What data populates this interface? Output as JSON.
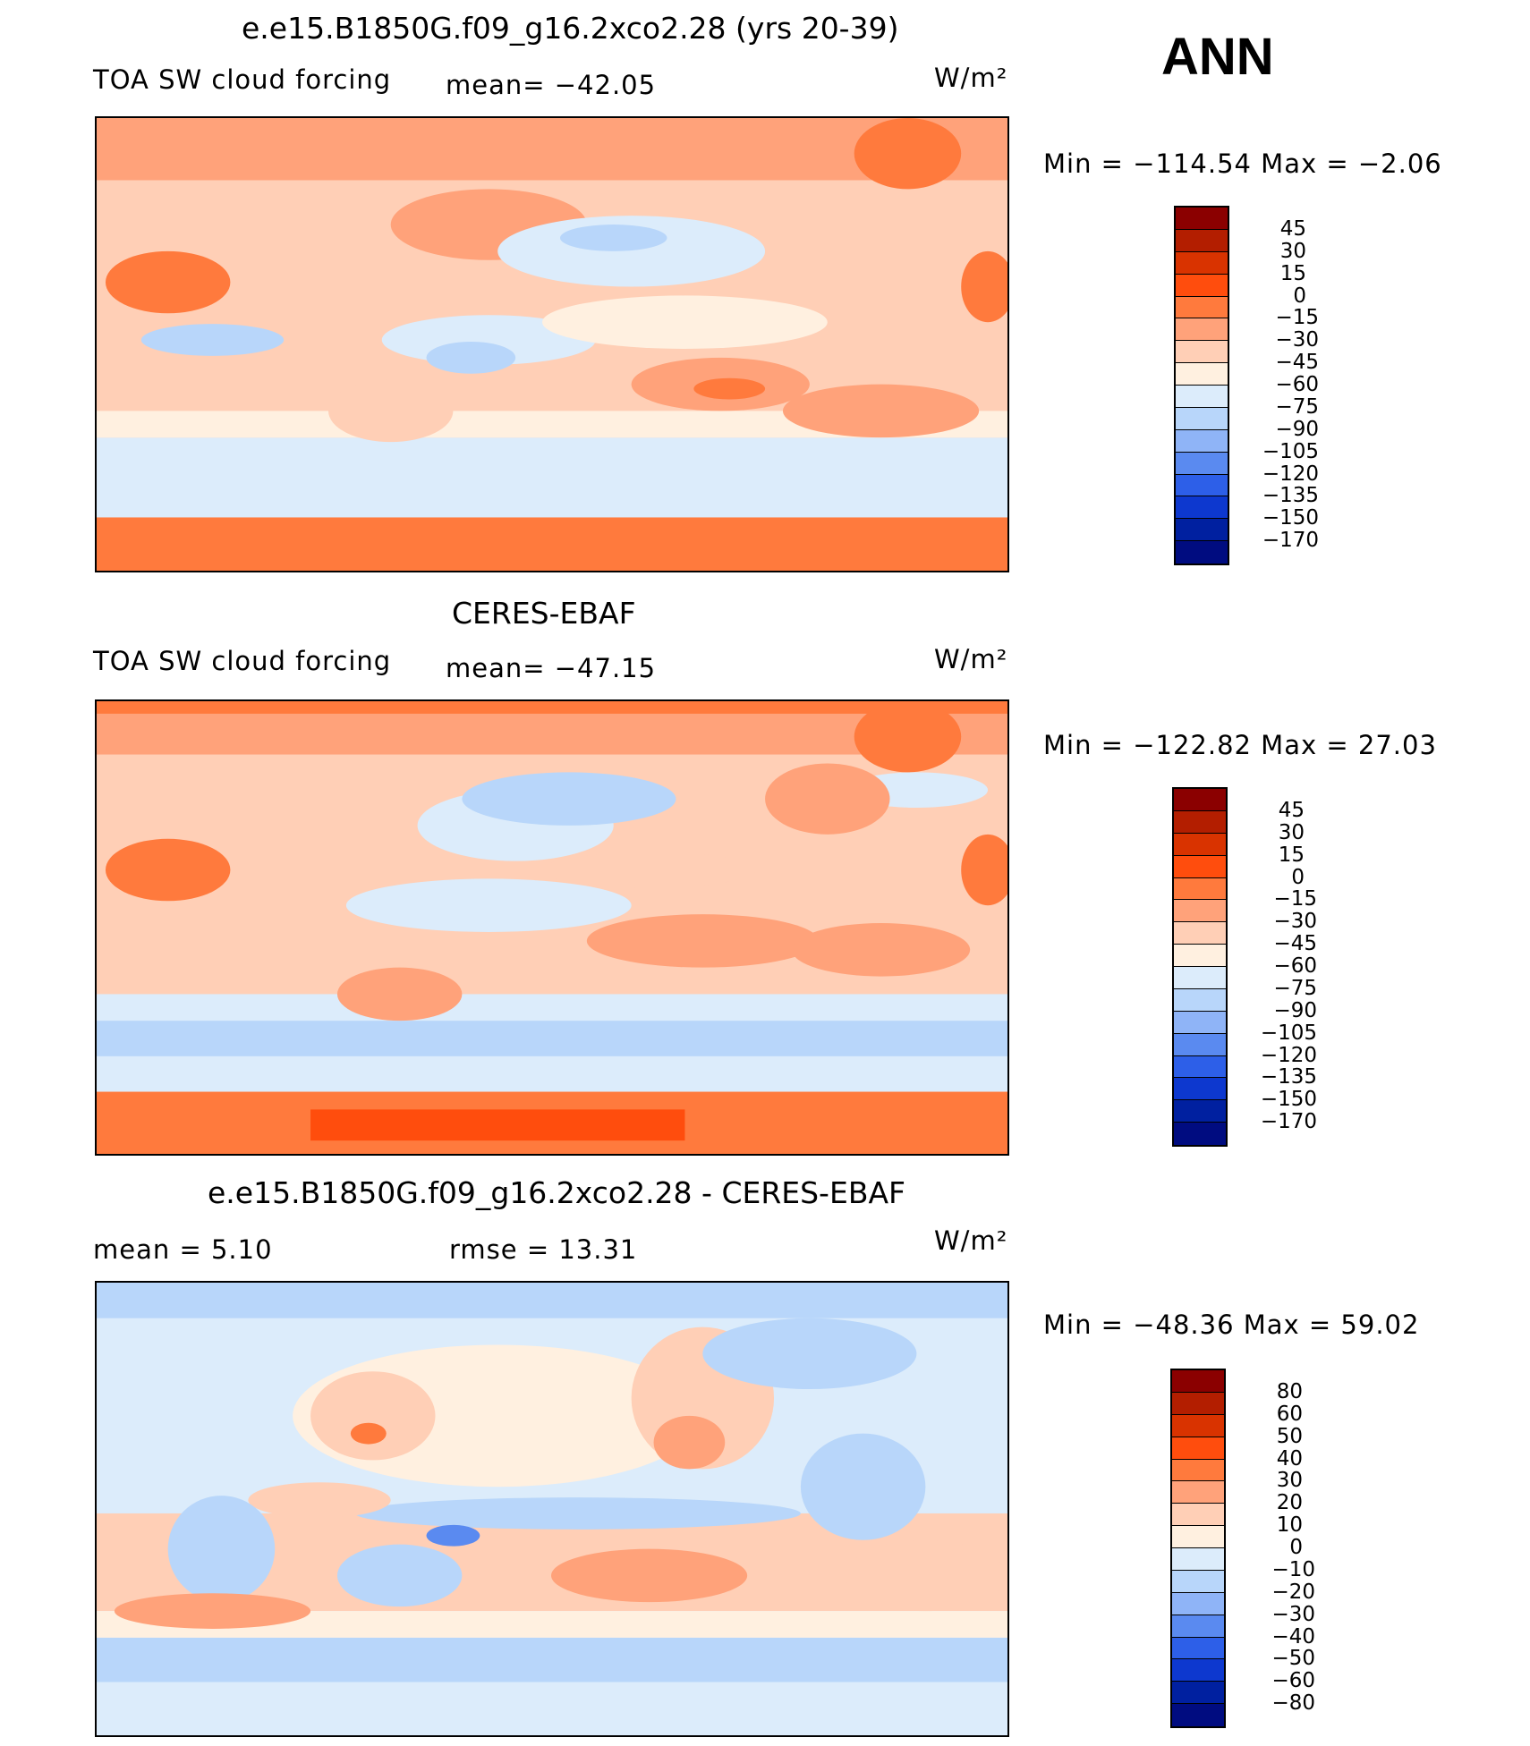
{
  "season": "ANN",
  "units": "W/m²",
  "panels": [
    {
      "title": "e.e15.B1850G.f09_g16.2xco2.28 (yrs 20-39)",
      "left_label": "TOA SW cloud forcing",
      "mid_label": "mean=  −42.05",
      "minmax": "Min  =  −114.54  Max  =    −2.06",
      "colorbar": {
        "labels": [
          "45",
          "30",
          "15",
          "0",
          "−15",
          "−30",
          "−45",
          "−60",
          "−75",
          "−90",
          "−105",
          "−120",
          "−135",
          "−150",
          "−170"
        ],
        "colors": [
          "#8b0000",
          "#b31e00",
          "#d93300",
          "#ff4d0d",
          "#ff7a3d",
          "#ffa27a",
          "#ffcfb6",
          "#fff0e0",
          "#dcecfb",
          "#b8d6fa",
          "#8fb4f7",
          "#5a8af0",
          "#2d5fe8",
          "#0d38cf",
          "#0020a0",
          "#000c80"
        ]
      }
    },
    {
      "title": "CERES-EBAF",
      "left_label": "TOA SW cloud forcing",
      "mid_label": "mean=  −47.15",
      "minmax": "Min  =  −122.82  Max  =    27.03",
      "colorbar": {
        "labels": [
          "45",
          "30",
          "15",
          "0",
          "−15",
          "−30",
          "−45",
          "−60",
          "−75",
          "−90",
          "−105",
          "−120",
          "−135",
          "−150",
          "−170"
        ],
        "colors": [
          "#8b0000",
          "#b31e00",
          "#d93300",
          "#ff4d0d",
          "#ff7a3d",
          "#ffa27a",
          "#ffcfb6",
          "#fff0e0",
          "#dcecfb",
          "#b8d6fa",
          "#8fb4f7",
          "#5a8af0",
          "#2d5fe8",
          "#0d38cf",
          "#0020a0",
          "#000c80"
        ]
      }
    },
    {
      "title": "e.e15.B1850G.f09_g16.2xco2.28 - CERES-EBAF",
      "left_label": "mean  =     5.10",
      "mid_label": "rmse  =    13.31",
      "minmax": "Min  =  −48.36  Max  =    59.02",
      "colorbar": {
        "labels": [
          "80",
          "60",
          "50",
          "40",
          "30",
          "20",
          "10",
          "0",
          "−10",
          "−20",
          "−30",
          "−40",
          "−50",
          "−60",
          "−80"
        ],
        "colors": [
          "#8b0000",
          "#b31e00",
          "#d93300",
          "#ff4d0d",
          "#ff7a3d",
          "#ffa27a",
          "#ffcfb6",
          "#fff0e0",
          "#dcecfb",
          "#b8d6fa",
          "#8fb4f7",
          "#5a8af0",
          "#2d5fe8",
          "#0d38cf",
          "#0020a0",
          "#000c80"
        ]
      }
    }
  ]
}
